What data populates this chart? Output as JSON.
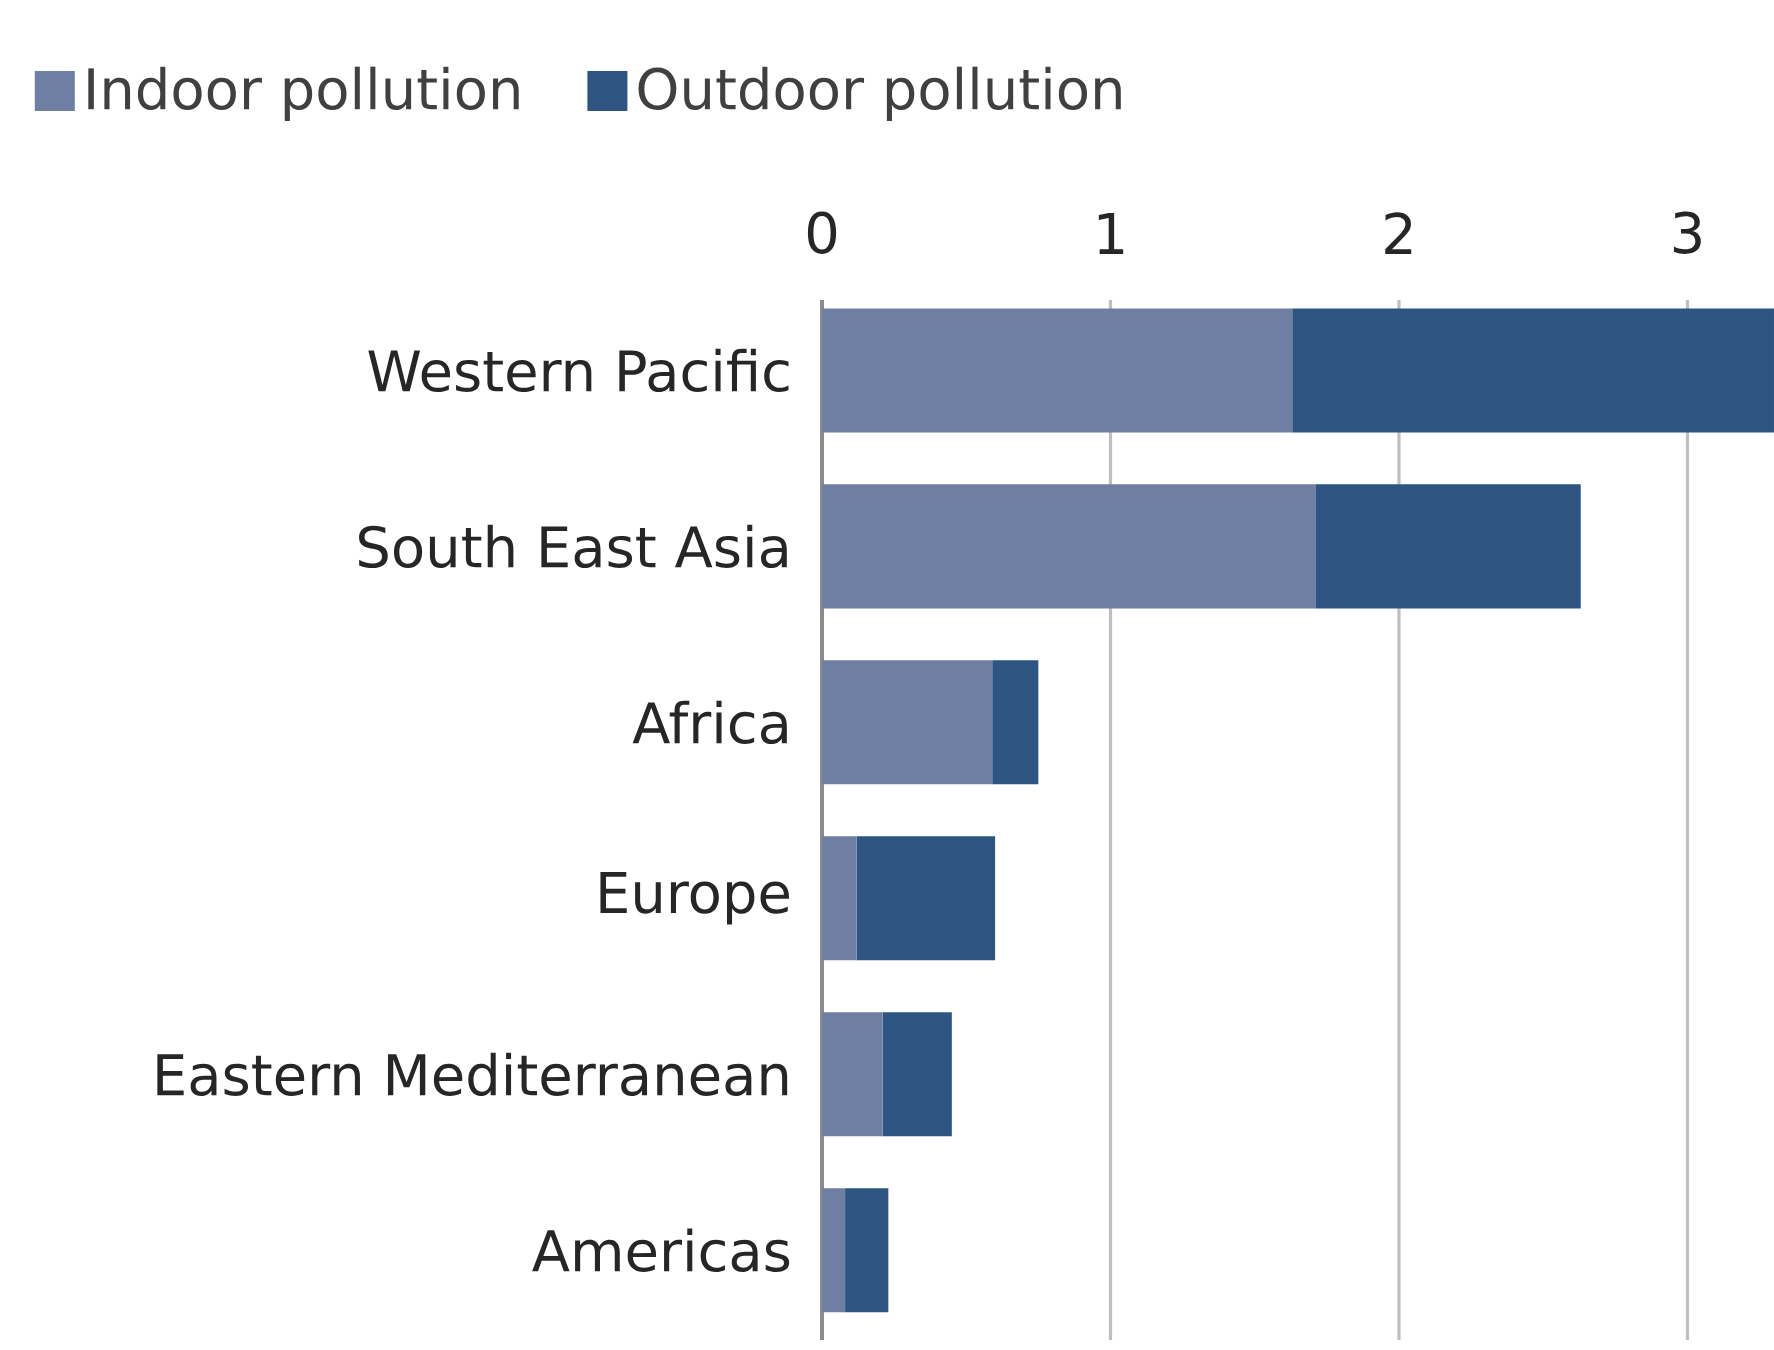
{
  "chart_data": {
    "type": "bar",
    "orientation": "horizontal",
    "stacked": true,
    "categories": [
      "Western Pacific",
      "South East Asia",
      "Africa",
      "Europe",
      "Eastern Mediterranean",
      "Americas"
    ],
    "series": [
      {
        "name": "Indoor pollution",
        "color": "#6f7fa3",
        "values": [
          1.63,
          1.71,
          0.59,
          0.12,
          0.21,
          0.08
        ]
      },
      {
        "name": "Outdoor pollution",
        "color": "#2e5582",
        "values": [
          1.67,
          0.92,
          0.16,
          0.48,
          0.24,
          0.15
        ]
      }
    ],
    "xlim": [
      0,
      3.3
    ],
    "xticks": [
      0,
      1,
      2,
      3
    ],
    "grid": "x",
    "legend": "top left"
  }
}
